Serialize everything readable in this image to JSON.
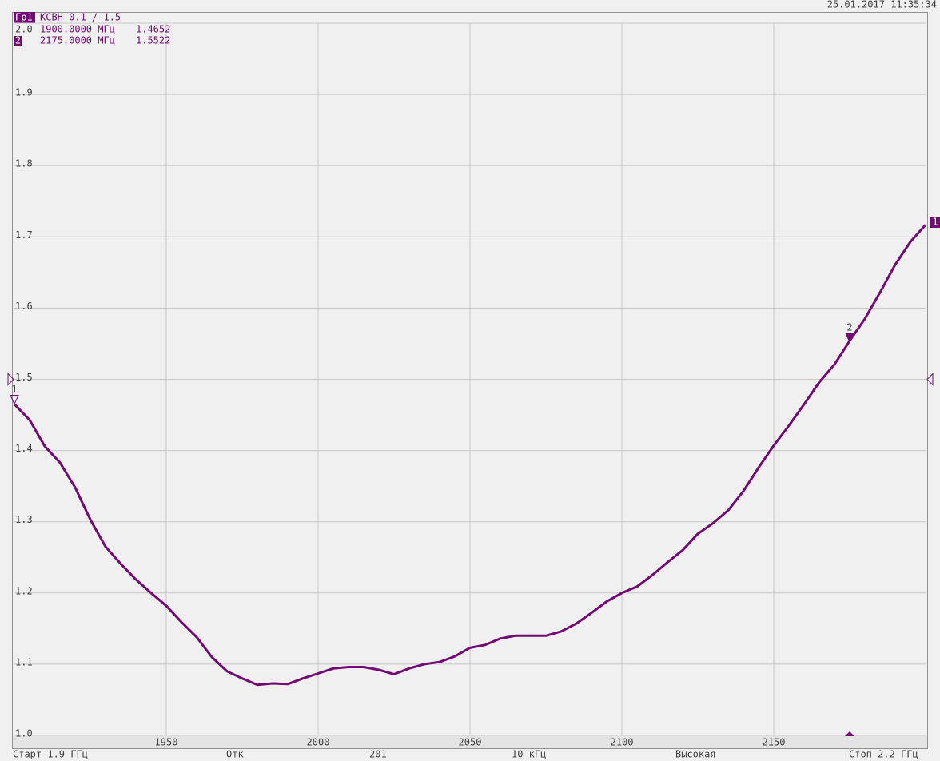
{
  "chart_data": {
    "type": "line",
    "timestamp": "25.01.2017 11:35:34",
    "trace_name": "Гр1",
    "format_label": "КСВН 0.1 / 1.5",
    "trace_end_label": "1",
    "ref_level": 1.5,
    "xlim": [
      1900,
      2200
    ],
    "xticks": [
      1950,
      2000,
      2050,
      2100,
      2150
    ],
    "ylim": [
      1.0,
      2.0
    ],
    "yticks": [
      {
        "value": 1.0,
        "label": "1.0"
      },
      1.1,
      1.2,
      1.3,
      1.4,
      1.5,
      1.6,
      1.7,
      1.8,
      1.9,
      {
        "value": 2.0,
        "label": "2.0"
      }
    ],
    "grid": true,
    "x": [
      1900,
      1905,
      1910,
      1915,
      1920,
      1925,
      1930,
      1935,
      1940,
      1945,
      1950,
      1955,
      1960,
      1965,
      1970,
      1975,
      1980,
      1985,
      1990,
      1995,
      2000,
      2005,
      2010,
      2015,
      2020,
      2025,
      2030,
      2035,
      2040,
      2045,
      2050,
      2055,
      2060,
      2065,
      2070,
      2075,
      2080,
      2085,
      2090,
      2095,
      2100,
      2105,
      2110,
      2115,
      2120,
      2125,
      2130,
      2135,
      2140,
      2145,
      2150,
      2155,
      2160,
      2165,
      2170,
      2175,
      2180,
      2185,
      2190,
      2195,
      2200
    ],
    "series": [
      {
        "name": "Гр1",
        "color": "#730a73",
        "values": [
          1.465,
          1.443,
          1.406,
          1.383,
          1.348,
          1.303,
          1.265,
          1.241,
          1.219,
          1.2,
          1.182,
          1.159,
          1.138,
          1.11,
          1.09,
          1.08,
          1.071,
          1.073,
          1.072,
          1.08,
          1.087,
          1.094,
          1.096,
          1.096,
          1.092,
          1.086,
          1.094,
          1.1,
          1.103,
          1.111,
          1.123,
          1.127,
          1.136,
          1.14,
          1.14,
          1.14,
          1.146,
          1.157,
          1.172,
          1.188,
          1.2,
          1.209,
          1.225,
          1.243,
          1.26,
          1.283,
          1.298,
          1.316,
          1.343,
          1.376,
          1.407,
          1.435,
          1.465,
          1.496,
          1.521,
          1.554,
          1.585,
          1.622,
          1.661,
          1.693,
          1.717
        ]
      }
    ],
    "markers": [
      {
        "name": "1",
        "x": 1900,
        "x_label": "1900.0000 МГц",
        "value": 1.4652,
        "active": false
      },
      {
        "name": "2",
        "x": 2175,
        "x_label": "2175.0000 МГц",
        "value": 1.5522,
        "active": true
      }
    ],
    "status": [
      "Старт 1.9 ГГц",
      "Отк",
      "201",
      "10 кГц",
      "Высокая",
      "Стоп 2.2 ГГц"
    ]
  }
}
